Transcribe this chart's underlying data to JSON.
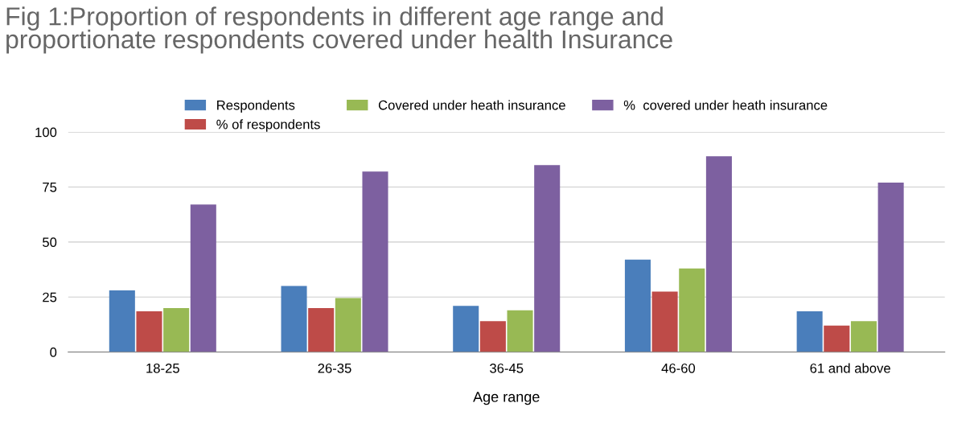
{
  "chart_data": {
    "type": "bar",
    "title": "Fig 1:Proportion of respondents in different age range and\nproportionate respondents covered under health Insurance",
    "xlabel": "Age range",
    "categories": [
      "18-25",
      "26-35",
      "36-45",
      "46-60",
      "61 and above"
    ],
    "series": [
      {
        "name": "Respondents",
        "color": "#4a7ebb",
        "values": [
          28,
          30,
          21,
          42,
          18.5
        ]
      },
      {
        "name": "% of respondents",
        "color": "#be4b48",
        "values": [
          18.5,
          20,
          14,
          27.5,
          12
        ]
      },
      {
        "name": "Covered under heath insurance",
        "color": "#98b954",
        "values": [
          20,
          24.5,
          19,
          38,
          14
        ]
      },
      {
        "name": "%  covered under heath insurance",
        "color": "#7d60a0",
        "values": [
          67,
          82,
          85,
          89,
          77
        ]
      }
    ],
    "ylim": [
      0,
      100
    ],
    "yticks": [
      0,
      25,
      50,
      75,
      100
    ],
    "grid": "y",
    "legend": "top"
  }
}
